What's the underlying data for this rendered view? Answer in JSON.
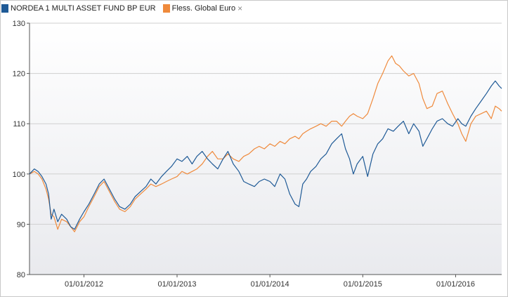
{
  "legend": {
    "series1_label": "NORDEA 1 MULTI ASSET FUND BP EUR",
    "series2_label": "Fless. Global Euro",
    "remove_icon": "×"
  },
  "colors": {
    "series1": "#1f5a96",
    "series2": "#ef8a3c",
    "grid": "#cfcfcf",
    "plot_bg_top": "#ffffff",
    "plot_bg_bottom": "#e9eaee"
  },
  "chart_data": {
    "type": "line",
    "title": "",
    "xlabel": "",
    "ylabel": "",
    "ylim": [
      80,
      130
    ],
    "xlim": [
      "2011-06-01",
      "2016-06-30"
    ],
    "grid": true,
    "legend_position": "top-left",
    "y_ticks": [
      "130",
      "120",
      "110",
      "100",
      "90",
      "80"
    ],
    "x_ticks": [
      {
        "date": "2012-01-01",
        "label": "01/01/2012"
      },
      {
        "date": "2013-01-01",
        "label": "01/01/2013"
      },
      {
        "date": "2014-01-01",
        "label": "01/01/2014"
      },
      {
        "date": "2015-01-01",
        "label": "01/01/2015"
      },
      {
        "date": "2016-01-01",
        "label": "01/01/2016"
      }
    ],
    "series": [
      {
        "name": "NORDEA 1 MULTI ASSET FUND BP EUR",
        "points": [
          [
            "2011-06-01",
            100
          ],
          [
            "2011-06-20",
            101
          ],
          [
            "2011-07-05",
            100.5
          ],
          [
            "2011-07-20",
            99.5
          ],
          [
            "2011-08-05",
            98
          ],
          [
            "2011-08-15",
            96
          ],
          [
            "2011-08-25",
            91
          ],
          [
            "2011-09-05",
            93
          ],
          [
            "2011-09-20",
            90.5
          ],
          [
            "2011-10-05",
            92
          ],
          [
            "2011-10-25",
            91
          ],
          [
            "2011-11-10",
            89.5
          ],
          [
            "2011-11-25",
            89
          ],
          [
            "2011-12-15",
            91
          ],
          [
            "2012-01-01",
            92.5
          ],
          [
            "2012-01-20",
            94
          ],
          [
            "2012-02-10",
            96
          ],
          [
            "2012-03-01",
            98
          ],
          [
            "2012-03-20",
            99
          ],
          [
            "2012-04-10",
            97
          ],
          [
            "2012-05-01",
            95
          ],
          [
            "2012-05-20",
            93.5
          ],
          [
            "2012-06-10",
            93
          ],
          [
            "2012-07-01",
            94
          ],
          [
            "2012-07-20",
            95.5
          ],
          [
            "2012-08-10",
            96.5
          ],
          [
            "2012-09-01",
            97.5
          ],
          [
            "2012-09-20",
            99
          ],
          [
            "2012-10-10",
            98
          ],
          [
            "2012-11-01",
            99.5
          ],
          [
            "2012-11-20",
            100.5
          ],
          [
            "2012-12-10",
            101.5
          ],
          [
            "2013-01-01",
            103
          ],
          [
            "2013-01-20",
            102.5
          ],
          [
            "2013-02-10",
            103.5
          ],
          [
            "2013-03-01",
            102
          ],
          [
            "2013-03-20",
            103.5
          ],
          [
            "2013-04-10",
            104.5
          ],
          [
            "2013-05-01",
            103
          ],
          [
            "2013-05-20",
            102
          ],
          [
            "2013-06-10",
            101
          ],
          [
            "2013-07-01",
            103
          ],
          [
            "2013-07-20",
            104.5
          ],
          [
            "2013-08-10",
            102
          ],
          [
            "2013-09-01",
            100.5
          ],
          [
            "2013-09-20",
            98.5
          ],
          [
            "2013-10-10",
            98
          ],
          [
            "2013-11-01",
            97.5
          ],
          [
            "2013-11-20",
            98.5
          ],
          [
            "2013-12-10",
            99
          ],
          [
            "2014-01-01",
            98.5
          ],
          [
            "2014-01-20",
            97.5
          ],
          [
            "2014-02-10",
            100
          ],
          [
            "2014-03-01",
            99
          ],
          [
            "2014-03-20",
            96
          ],
          [
            "2014-04-10",
            94
          ],
          [
            "2014-04-25",
            93.5
          ],
          [
            "2014-05-10",
            98
          ],
          [
            "2014-05-25",
            99
          ],
          [
            "2014-06-10",
            100.5
          ],
          [
            "2014-07-01",
            101.5
          ],
          [
            "2014-07-20",
            103
          ],
          [
            "2014-08-10",
            104
          ],
          [
            "2014-09-01",
            106
          ],
          [
            "2014-09-20",
            107
          ],
          [
            "2014-10-10",
            108
          ],
          [
            "2014-10-25",
            105
          ],
          [
            "2014-11-10",
            103
          ],
          [
            "2014-11-25",
            100
          ],
          [
            "2014-12-10",
            102
          ],
          [
            "2015-01-01",
            103.5
          ],
          [
            "2015-01-20",
            99.5
          ],
          [
            "2015-02-10",
            104
          ],
          [
            "2015-03-01",
            106
          ],
          [
            "2015-03-20",
            107
          ],
          [
            "2015-04-10",
            109
          ],
          [
            "2015-05-01",
            108.5
          ],
          [
            "2015-05-20",
            109.5
          ],
          [
            "2015-06-10",
            110.5
          ],
          [
            "2015-07-01",
            108
          ],
          [
            "2015-07-20",
            110
          ],
          [
            "2015-08-10",
            108.5
          ],
          [
            "2015-08-25",
            105.5
          ],
          [
            "2015-09-10",
            107
          ],
          [
            "2015-10-01",
            109
          ],
          [
            "2015-10-20",
            110.5
          ],
          [
            "2015-11-10",
            111
          ],
          [
            "2015-12-01",
            110
          ],
          [
            "2015-12-20",
            109.5
          ],
          [
            "2016-01-10",
            111
          ],
          [
            "2016-01-25",
            110
          ],
          [
            "2016-02-10",
            109.5
          ],
          [
            "2016-03-01",
            111.5
          ],
          [
            "2016-03-20",
            113
          ],
          [
            "2016-04-10",
            114.5
          ],
          [
            "2016-05-01",
            116
          ],
          [
            "2016-05-20",
            117.5
          ],
          [
            "2016-06-05",
            118.5
          ],
          [
            "2016-06-20",
            117.5
          ],
          [
            "2016-06-30",
            117
          ]
        ]
      },
      {
        "name": "Fless. Global Euro",
        "points": [
          [
            "2011-06-01",
            100
          ],
          [
            "2011-06-20",
            100.5
          ],
          [
            "2011-07-05",
            100
          ],
          [
            "2011-07-20",
            99
          ],
          [
            "2011-08-05",
            97
          ],
          [
            "2011-08-15",
            95
          ],
          [
            "2011-08-25",
            92
          ],
          [
            "2011-09-05",
            91.5
          ],
          [
            "2011-09-20",
            89
          ],
          [
            "2011-10-05",
            91
          ],
          [
            "2011-10-25",
            90.5
          ],
          [
            "2011-11-10",
            89.5
          ],
          [
            "2011-11-25",
            88.5
          ],
          [
            "2011-12-15",
            90.5
          ],
          [
            "2012-01-01",
            91.5
          ],
          [
            "2012-01-20",
            93.5
          ],
          [
            "2012-02-10",
            95.5
          ],
          [
            "2012-03-01",
            97.5
          ],
          [
            "2012-03-20",
            98.5
          ],
          [
            "2012-04-10",
            96.5
          ],
          [
            "2012-05-01",
            94.5
          ],
          [
            "2012-05-20",
            93
          ],
          [
            "2012-06-10",
            92.5
          ],
          [
            "2012-07-01",
            93.5
          ],
          [
            "2012-07-20",
            95
          ],
          [
            "2012-08-10",
            96
          ],
          [
            "2012-09-01",
            97
          ],
          [
            "2012-09-20",
            98
          ],
          [
            "2012-10-10",
            97.5
          ],
          [
            "2012-11-01",
            98
          ],
          [
            "2012-11-20",
            98.5
          ],
          [
            "2012-12-10",
            99
          ],
          [
            "2013-01-01",
            99.5
          ],
          [
            "2013-01-20",
            100.5
          ],
          [
            "2013-02-10",
            100
          ],
          [
            "2013-03-01",
            100.5
          ],
          [
            "2013-03-20",
            101
          ],
          [
            "2013-04-10",
            102
          ],
          [
            "2013-05-01",
            103.5
          ],
          [
            "2013-05-20",
            104.5
          ],
          [
            "2013-06-10",
            103
          ],
          [
            "2013-07-01",
            103
          ],
          [
            "2013-07-20",
            104
          ],
          [
            "2013-08-10",
            103
          ],
          [
            "2013-09-01",
            102.5
          ],
          [
            "2013-09-20",
            103.5
          ],
          [
            "2013-10-10",
            104
          ],
          [
            "2013-11-01",
            105
          ],
          [
            "2013-11-20",
            105.5
          ],
          [
            "2013-12-10",
            105
          ],
          [
            "2014-01-01",
            106
          ],
          [
            "2014-01-20",
            105.5
          ],
          [
            "2014-02-10",
            106.5
          ],
          [
            "2014-03-01",
            106
          ],
          [
            "2014-03-20",
            107
          ],
          [
            "2014-04-10",
            107.5
          ],
          [
            "2014-04-25",
            107
          ],
          [
            "2014-05-10",
            108
          ],
          [
            "2014-05-25",
            108.5
          ],
          [
            "2014-06-10",
            109
          ],
          [
            "2014-07-01",
            109.5
          ],
          [
            "2014-07-20",
            110
          ],
          [
            "2014-08-10",
            109.5
          ],
          [
            "2014-09-01",
            110.5
          ],
          [
            "2014-09-20",
            110.5
          ],
          [
            "2014-10-10",
            109.5
          ],
          [
            "2014-10-25",
            110.5
          ],
          [
            "2014-11-10",
            111.5
          ],
          [
            "2014-11-25",
            112
          ],
          [
            "2014-12-10",
            111.5
          ],
          [
            "2015-01-01",
            111
          ],
          [
            "2015-01-20",
            112
          ],
          [
            "2015-02-10",
            115
          ],
          [
            "2015-03-01",
            118
          ],
          [
            "2015-03-20",
            120
          ],
          [
            "2015-04-10",
            122.5
          ],
          [
            "2015-04-25",
            123.5
          ],
          [
            "2015-05-10",
            122
          ],
          [
            "2015-05-25",
            121.5
          ],
          [
            "2015-06-10",
            120.5
          ],
          [
            "2015-07-01",
            119.5
          ],
          [
            "2015-07-20",
            120
          ],
          [
            "2015-08-10",
            118
          ],
          [
            "2015-08-25",
            115
          ],
          [
            "2015-09-10",
            113
          ],
          [
            "2015-10-01",
            113.5
          ],
          [
            "2015-10-20",
            116
          ],
          [
            "2015-11-10",
            116.5
          ],
          [
            "2015-12-01",
            114
          ],
          [
            "2015-12-20",
            112
          ],
          [
            "2016-01-10",
            110
          ],
          [
            "2016-01-25",
            108
          ],
          [
            "2016-02-10",
            106.5
          ],
          [
            "2016-03-01",
            110
          ],
          [
            "2016-03-20",
            111.5
          ],
          [
            "2016-04-10",
            112
          ],
          [
            "2016-05-01",
            112.5
          ],
          [
            "2016-05-20",
            111
          ],
          [
            "2016-06-05",
            113.5
          ],
          [
            "2016-06-20",
            113
          ],
          [
            "2016-06-30",
            112.5
          ]
        ]
      }
    ]
  }
}
